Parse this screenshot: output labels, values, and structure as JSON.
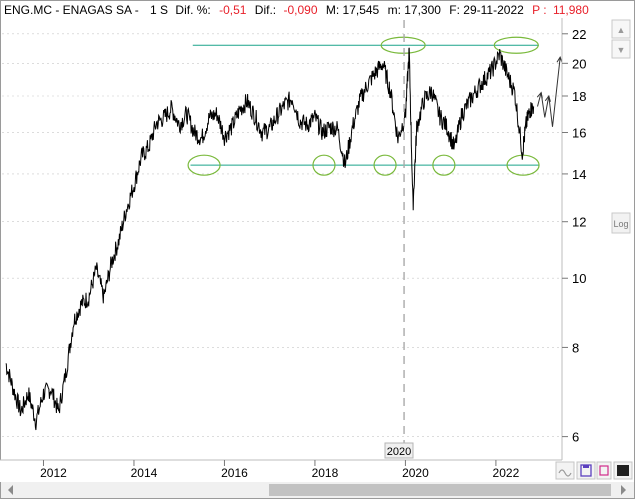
{
  "header": {
    "ticker": "ENG.MC - ENAGAS SA -",
    "period": "1 S",
    "dif_pct_label": "Dif. %:",
    "dif_pct_value": "-0,51",
    "dif_label": "Dif.:",
    "dif_value": "-0,090",
    "max_label": "M: 17,545",
    "min_label": "m: 17,300",
    "date_label": "F: 29-11-2022",
    "price_label": "P :",
    "price_value": "11,980"
  },
  "colors": {
    "negative": "#e8202a",
    "price_line": "#000000",
    "channel": "#1aa38a",
    "circle": "#79b93b",
    "grid": "#c8c8c8",
    "axis_panel": "#f0f0f0"
  },
  "buttons": {
    "scale_up": "▲",
    "scale_down": "▼",
    "log": "Log"
  },
  "chart_data": {
    "type": "line",
    "title": "ENG.MC - ENAGAS SA",
    "y_scale": "log",
    "ylim": [
      5.6,
      23
    ],
    "y_ticks": [
      6,
      8,
      10,
      12,
      14,
      16,
      18,
      20,
      22
    ],
    "x_range": [
      "2011-02",
      "2023-06"
    ],
    "x_ticks": [
      "2012",
      "2014",
      "2016",
      "2018",
      "2020",
      "2022"
    ],
    "crosshair_label": "2020",
    "series": [
      {
        "x": [
          "2011-03",
          "2011-05",
          "2011-07",
          "2011-09",
          "2011-11",
          "2012-01",
          "2012-03",
          "2012-05",
          "2012-07",
          "2012-09",
          "2012-11",
          "2013-01",
          "2013-03",
          "2013-05",
          "2013-07",
          "2013-09",
          "2013-11",
          "2014-01",
          "2014-03",
          "2014-05",
          "2014-07",
          "2014-09",
          "2014-11",
          "2015-01",
          "2015-03",
          "2015-05",
          "2015-07",
          "2015-09",
          "2015-11",
          "2016-01",
          "2016-03",
          "2016-05",
          "2016-07",
          "2016-09",
          "2016-11",
          "2017-01",
          "2017-03",
          "2017-05",
          "2017-07",
          "2017-09",
          "2017-11",
          "2018-01",
          "2018-03",
          "2018-05",
          "2018-07",
          "2018-09",
          "2018-11",
          "2019-01",
          "2019-03",
          "2019-05",
          "2019-07",
          "2019-09",
          "2019-11",
          "2020-01",
          "2020-02",
          "2020-03",
          "2020-04",
          "2020-06",
          "2020-08",
          "2020-10",
          "2020-12",
          "2021-02",
          "2021-04",
          "2021-06",
          "2021-08",
          "2021-10",
          "2021-12",
          "2022-02",
          "2022-04",
          "2022-06",
          "2022-08",
          "2022-09",
          "2022-10",
          "2022-11"
        ],
        "values": [
          7.6,
          7.0,
          6.5,
          6.9,
          6.3,
          6.9,
          7.0,
          6.5,
          7.4,
          8.7,
          9.2,
          9.4,
          10.3,
          9.4,
          10.5,
          11.3,
          12.5,
          13.5,
          14.8,
          15.3,
          16.5,
          16.8,
          17.3,
          16.4,
          17.0,
          16.0,
          15.7,
          16.8,
          17.0,
          15.8,
          16.3,
          17.2,
          17.7,
          16.9,
          16.0,
          16.2,
          16.9,
          17.5,
          17.9,
          16.6,
          16.4,
          16.8,
          16.0,
          16.3,
          16.2,
          14.4,
          16.3,
          17.8,
          18.7,
          19.4,
          20.0,
          18.3,
          15.7,
          16.9,
          20.8,
          12.6,
          16.3,
          17.8,
          18.3,
          16.9,
          16.3,
          15.2,
          17.0,
          17.7,
          18.4,
          19.0,
          19.6,
          20.6,
          19.3,
          18.2,
          15.0,
          16.4,
          17.2,
          17.4
        ]
      }
    ],
    "annotations": {
      "resistance": 21.2,
      "support": 14.4,
      "projection": [
        17.4,
        18.2,
        16.8,
        18.0,
        16.3,
        20.4
      ]
    }
  }
}
